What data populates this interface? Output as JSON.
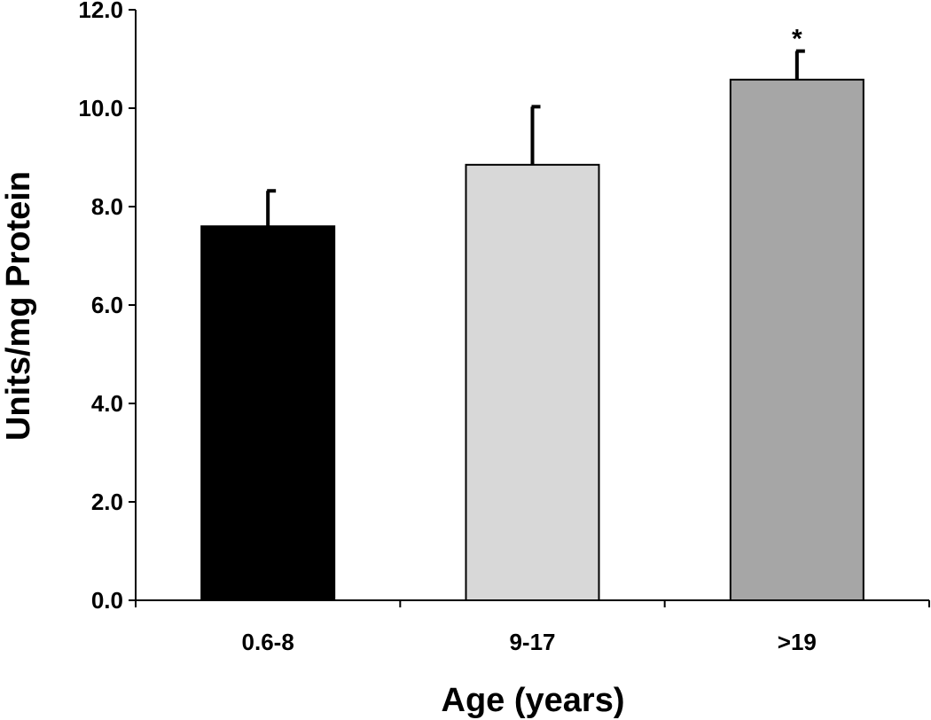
{
  "chart_data": {
    "type": "bar",
    "title": "",
    "xlabel": "Age (years)",
    "ylabel": "Units/mg Protein",
    "categories": [
      "0.6-8",
      "9-17",
      ">19"
    ],
    "values": [
      7.6,
      8.85,
      10.58
    ],
    "error_upper": [
      0.72,
      1.18,
      0.58
    ],
    "bar_colors": [
      "#000000",
      "#d8d8d8",
      "#a6a6a6"
    ],
    "ylim": [
      0,
      12
    ],
    "yticks": [
      0,
      2,
      4,
      6,
      8,
      10,
      12
    ],
    "ytick_labels": [
      "0.0",
      "2.0",
      "4.0",
      "6.0",
      "8.0",
      "10.0",
      "12.0"
    ],
    "annotations": [
      {
        "category_index": 2,
        "text": "*"
      }
    ],
    "grid": false,
    "legend": "none"
  }
}
